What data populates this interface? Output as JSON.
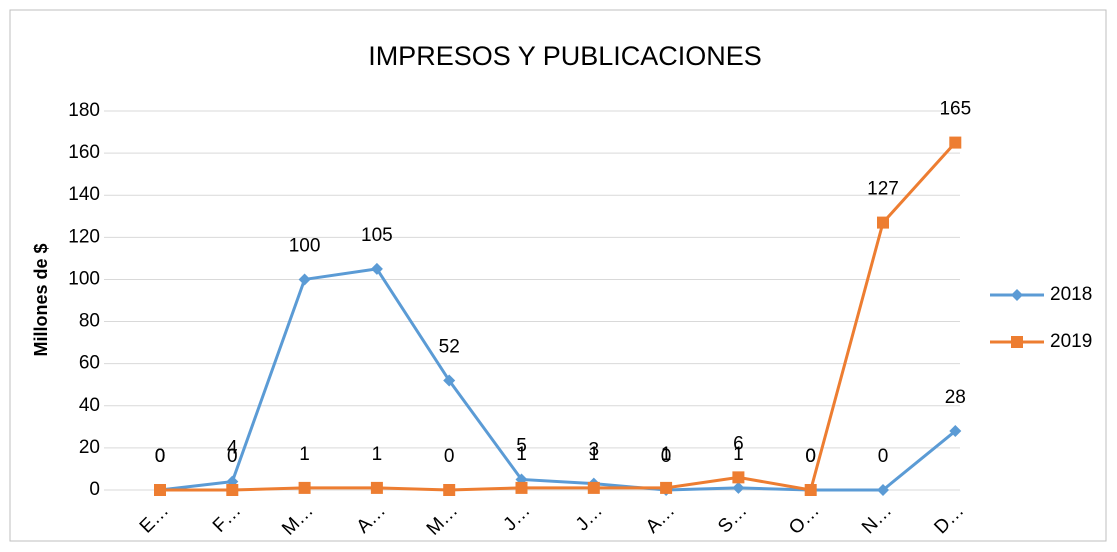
{
  "chart_data": {
    "type": "line",
    "title": "IMPRESOS Y PUBLICACIONES",
    "y_label": "Millones de $",
    "categories": [
      "E…",
      "F…",
      "M…",
      "A…",
      "M…",
      "J…",
      "J…",
      "A…",
      "S…",
      "O…",
      "N…",
      "D…"
    ],
    "series": [
      {
        "name": "2018",
        "color": "#5b9bd5",
        "values": [
          0,
          4,
          100,
          105,
          52,
          5,
          3,
          0,
          1,
          0,
          0,
          28
        ]
      },
      {
        "name": "2019",
        "color": "#ed7d31",
        "values": [
          0,
          0,
          1,
          1,
          0,
          1,
          1,
          1,
          6,
          0,
          127,
          165
        ]
      }
    ],
    "ylim": [
      0,
      180
    ],
    "yticks": [
      0,
      20,
      40,
      60,
      80,
      100,
      120,
      140,
      160,
      180
    ],
    "grid": true,
    "legend": "right"
  }
}
